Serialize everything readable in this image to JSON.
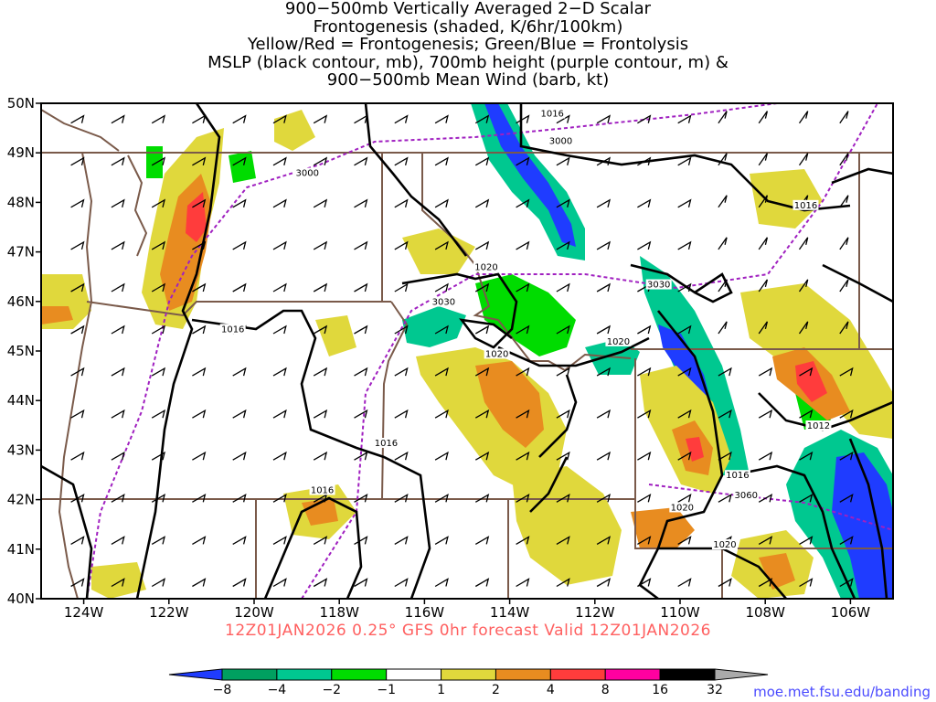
{
  "title_lines": [
    "900−500mb Vertically Averaged 2−D Scalar",
    "Frontogenesis (shaded, K/6hr/100km)",
    "Yellow/Red = Frontogenesis;  Green/Blue = Frontolysis",
    "MSLP (black contour, mb), 700mb height (purple contour, m) &",
    "900−500mb Mean Wind (barb, kt)"
  ],
  "subtitle": "12Z01JAN2026 0.25° GFS 0hr forecast Valid 12Z01JAN2026",
  "credit": "moe.met.fsu.edu/banding",
  "map": {
    "lat_labels": [
      "50N",
      "49N",
      "48N",
      "47N",
      "46N",
      "45N",
      "44N",
      "43N",
      "42N",
      "41N",
      "40N"
    ],
    "lon_labels": [
      "124W",
      "122W",
      "120W",
      "118W",
      "116W",
      "114W",
      "112W",
      "110W",
      "108W",
      "106W"
    ],
    "mslp_labels": [
      {
        "text": "1016",
        "lon": -113.0,
        "lat": 49.75
      },
      {
        "text": "1016",
        "lon": -120.5,
        "lat": 45.4
      },
      {
        "text": "1016",
        "lon": -116.9,
        "lat": 43.1
      },
      {
        "text": "1016",
        "lon": -118.4,
        "lat": 42.15
      },
      {
        "text": "1020",
        "lon": -114.55,
        "lat": 46.65
      },
      {
        "text": "1020",
        "lon": -114.3,
        "lat": 44.9
      },
      {
        "text": "1020",
        "lon": -111.45,
        "lat": 45.15
      },
      {
        "text": "1020",
        "lon": -109.95,
        "lat": 41.8
      },
      {
        "text": "1020",
        "lon": -108.95,
        "lat": 41.05
      },
      {
        "text": "1016",
        "lon": -108.65,
        "lat": 42.45
      },
      {
        "text": "1012",
        "lon": -106.75,
        "lat": 43.45
      },
      {
        "text": "1016",
        "lon": -107.05,
        "lat": 47.9
      }
    ],
    "hgt_labels": [
      {
        "text": "3000",
        "lon": -118.75,
        "lat": 48.55
      },
      {
        "text": "3000",
        "lon": -112.8,
        "lat": 49.2
      },
      {
        "text": "3030",
        "lon": -115.55,
        "lat": 45.95
      },
      {
        "text": "3030",
        "lon": -110.5,
        "lat": 46.3
      },
      {
        "text": "3060",
        "lon": -108.45,
        "lat": 42.05
      }
    ]
  },
  "colorbar": {
    "labels": [
      "−8",
      "−4",
      "−2",
      "−1",
      "1",
      "2",
      "4",
      "8",
      "16",
      "32"
    ],
    "colors": [
      "#1f3cff",
      "#00a060",
      "#00c890",
      "#00dc00",
      "#ffffff",
      "#e0d83c",
      "#e88c20",
      "#ff3c3c",
      "#ff00a0",
      "#000000",
      "#aaaaaa"
    ]
  }
}
